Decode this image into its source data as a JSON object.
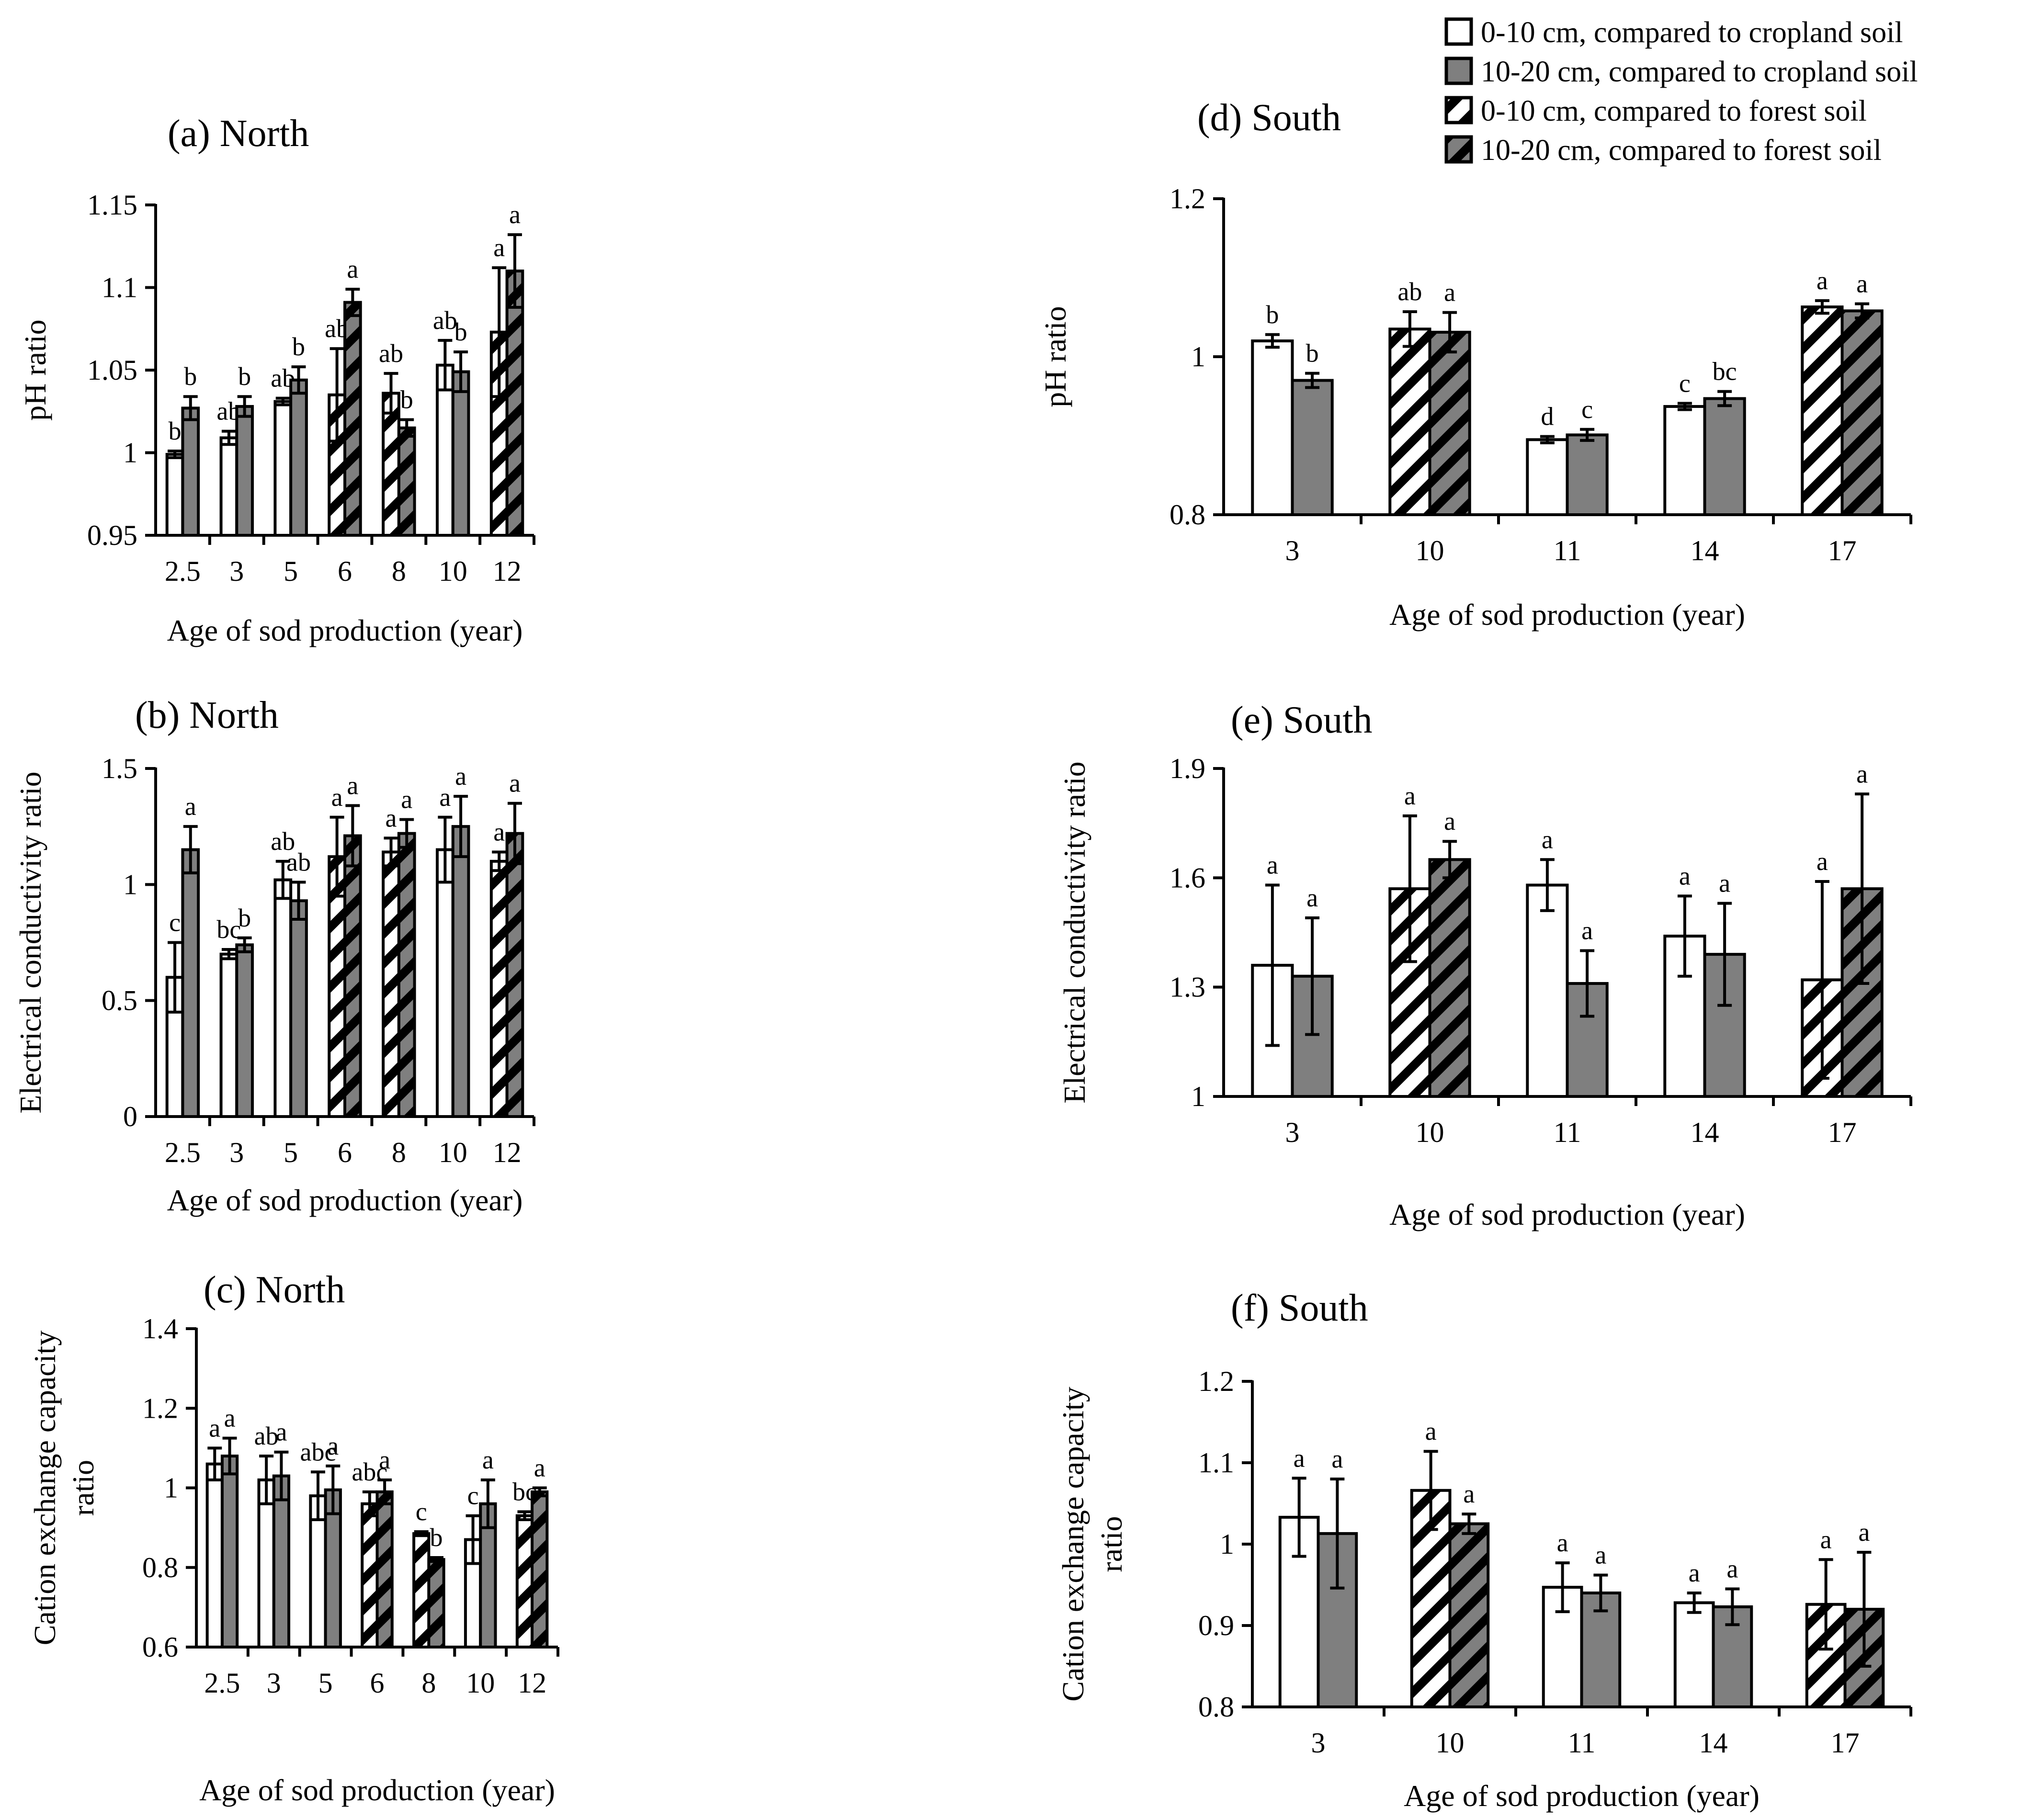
{
  "legend": {
    "items": [
      {
        "label": "0-10 cm, compared to cropland soil",
        "style": "white"
      },
      {
        "label": "10-20 cm, compared to cropland soil",
        "style": "gray"
      },
      {
        "label": "0-10 cm, compared to forest soil",
        "style": "white-hatch"
      },
      {
        "label": "10-20 cm, compared to forest soil",
        "style": "gray-hatch"
      }
    ]
  },
  "colors": {
    "gray": "#7f7f7f",
    "white": "#ffffff",
    "line": "#000000"
  },
  "chart_data": [
    {
      "id": "a",
      "type": "bar",
      "title": "(a) North",
      "xlabel": "Age of sod production (year)",
      "ylabel": [
        "pH ratio"
      ],
      "ylim": [
        0.95,
        1.15
      ],
      "yticks": [
        0.95,
        1.0,
        1.05,
        1.1,
        1.15
      ],
      "ytick_labels": [
        "0.95",
        "1",
        "1.05",
        "1.1",
        "1.15"
      ],
      "categories": [
        "2.5",
        "3",
        "5",
        "6",
        "8",
        "10",
        "12"
      ],
      "reference": [
        "cropland",
        "cropland",
        "cropland",
        "forest",
        "forest",
        "cropland",
        "forest"
      ],
      "series": [
        {
          "name": "0-10 cm",
          "values": [
            0.999,
            1.009,
            1.031,
            1.035,
            1.036,
            1.053,
            1.073
          ],
          "errors": [
            0.002,
            0.004,
            0.002,
            0.028,
            0.012,
            0.015,
            0.039
          ],
          "letters": [
            "b",
            "ab",
            "ab",
            "ab",
            "ab",
            "ab",
            "a"
          ]
        },
        {
          "name": "10-20 cm",
          "values": [
            1.027,
            1.028,
            1.044,
            1.091,
            1.015,
            1.049,
            1.11
          ],
          "errors": [
            0.007,
            0.006,
            0.008,
            0.008,
            0.005,
            0.012,
            0.022
          ],
          "letters": [
            "b",
            "b",
            "b",
            "a",
            "b",
            "b",
            "a"
          ]
        }
      ]
    },
    {
      "id": "b",
      "type": "bar",
      "title": "(b) North",
      "xlabel": "Age of sod production (year)",
      "ylabel": [
        "Electrical conductivity ratio"
      ],
      "ylim": [
        0,
        1.5
      ],
      "yticks": [
        0,
        0.5,
        1.0,
        1.5
      ],
      "ytick_labels": [
        "0",
        "0.5",
        "1",
        "1.5"
      ],
      "categories": [
        "2.5",
        "3",
        "5",
        "6",
        "8",
        "10",
        "12"
      ],
      "reference": [
        "cropland",
        "cropland",
        "cropland",
        "forest",
        "forest",
        "cropland",
        "forest"
      ],
      "series": [
        {
          "name": "0-10 cm",
          "values": [
            0.6,
            0.7,
            1.02,
            1.12,
            1.14,
            1.15,
            1.1
          ],
          "errors": [
            0.15,
            0.02,
            0.08,
            0.17,
            0.06,
            0.14,
            0.04
          ],
          "letters": [
            "c",
            "bc",
            "ab",
            "a",
            "a",
            "a",
            "a"
          ]
        },
        {
          "name": "10-20 cm",
          "values": [
            1.15,
            0.74,
            0.93,
            1.21,
            1.22,
            1.25,
            1.22
          ],
          "errors": [
            0.1,
            0.03,
            0.08,
            0.13,
            0.06,
            0.13,
            0.13
          ],
          "letters": [
            "a",
            "b",
            "ab",
            "a",
            "a",
            "a",
            "a"
          ]
        }
      ]
    },
    {
      "id": "c",
      "type": "bar",
      "title": "(c) North",
      "xlabel": "Age of sod production (year)",
      "ylabel": [
        "Cation exchange capacity",
        "ratio"
      ],
      "ylim": [
        0.6,
        1.4
      ],
      "yticks": [
        0.6,
        0.8,
        1.0,
        1.2,
        1.4
      ],
      "ytick_labels": [
        "0.6",
        "0.8",
        "1",
        "1.2",
        "1.4"
      ],
      "categories": [
        "2.5",
        "3",
        "5",
        "6",
        "8",
        "10",
        "12"
      ],
      "reference": [
        "cropland",
        "cropland",
        "cropland",
        "forest",
        "forest",
        "cropland",
        "forest"
      ],
      "series": [
        {
          "name": "0-10 cm",
          "values": [
            1.06,
            1.02,
            0.98,
            0.96,
            0.885,
            0.87,
            0.93
          ],
          "errors": [
            0.04,
            0.06,
            0.06,
            0.03,
            0.005,
            0.06,
            0.01
          ],
          "letters": [
            "a",
            "ab",
            "abc",
            "abc",
            "c",
            "c",
            "bc"
          ]
        },
        {
          "name": "10-20 cm",
          "values": [
            1.08,
            1.03,
            0.995,
            0.99,
            0.82,
            0.96,
            0.99
          ],
          "errors": [
            0.045,
            0.06,
            0.06,
            0.03,
            0.005,
            0.06,
            0.01
          ],
          "letters": [
            "a",
            "a",
            "a",
            "a",
            "b",
            "a",
            "a"
          ]
        }
      ]
    },
    {
      "id": "d",
      "type": "bar",
      "title": "(d) South",
      "xlabel": "Age of sod production (year)",
      "ylabel": [
        "pH ratio"
      ],
      "ylim": [
        0.8,
        1.2
      ],
      "yticks": [
        0.8,
        1.0,
        1.2
      ],
      "ytick_labels": [
        "0.8",
        "1",
        "1.2"
      ],
      "categories": [
        "3",
        "10",
        "11",
        "14",
        "17"
      ],
      "reference": [
        "cropland",
        "forest",
        "cropland",
        "cropland",
        "forest"
      ],
      "series": [
        {
          "name": "0-10 cm",
          "values": [
            1.02,
            1.035,
            0.895,
            0.937,
            1.063
          ],
          "errors": [
            0.008,
            0.022,
            0.004,
            0.004,
            0.008
          ],
          "letters": [
            "b",
            "ab",
            "d",
            "c",
            "a"
          ]
        },
        {
          "name": "10-20 cm",
          "values": [
            0.97,
            1.031,
            0.901,
            0.947,
            1.058
          ],
          "errors": [
            0.009,
            0.025,
            0.007,
            0.009,
            0.009
          ],
          "letters": [
            "b",
            "a",
            "c",
            "bc",
            "a"
          ]
        }
      ]
    },
    {
      "id": "e",
      "type": "bar",
      "title": "(e) South",
      "xlabel": "Age of sod production (year)",
      "ylabel": [
        "Electrical conductivity ratio"
      ],
      "ylim": [
        1.0,
        1.9
      ],
      "yticks": [
        1.0,
        1.3,
        1.6,
        1.9
      ],
      "ytick_labels": [
        "1",
        "1.3",
        "1.6",
        "1.9"
      ],
      "categories": [
        "3",
        "10",
        "11",
        "14",
        "17"
      ],
      "reference": [
        "cropland",
        "forest",
        "cropland",
        "cropland",
        "forest"
      ],
      "series": [
        {
          "name": "0-10 cm",
          "values": [
            1.36,
            1.57,
            1.58,
            1.44,
            1.32
          ],
          "errors": [
            0.22,
            0.2,
            0.07,
            0.11,
            0.27
          ],
          "letters": [
            "a",
            "a",
            "a",
            "a",
            "a"
          ]
        },
        {
          "name": "10-20 cm",
          "values": [
            1.33,
            1.65,
            1.31,
            1.39,
            1.57
          ],
          "errors": [
            0.16,
            0.05,
            0.09,
            0.14,
            0.26
          ],
          "letters": [
            "a",
            "a",
            "a",
            "a",
            "a"
          ]
        }
      ]
    },
    {
      "id": "f",
      "type": "bar",
      "title": "(f) South",
      "xlabel": "Age of sod production (year)",
      "ylabel": [
        "Cation exchange capacity",
        "ratio"
      ],
      "ylim": [
        0.8,
        1.2
      ],
      "yticks": [
        0.8,
        0.9,
        1.0,
        1.1,
        1.2
      ],
      "ytick_labels": [
        "0.8",
        "0.9",
        "1",
        "1.1",
        "1.2"
      ],
      "categories": [
        "3",
        "10",
        "11",
        "14",
        "17"
      ],
      "reference": [
        "cropland",
        "forest",
        "cropland",
        "cropland",
        "forest"
      ],
      "series": [
        {
          "name": "0-10 cm",
          "values": [
            1.033,
            1.066,
            0.947,
            0.928,
            0.926
          ],
          "errors": [
            0.048,
            0.048,
            0.03,
            0.012,
            0.055
          ],
          "letters": [
            "a",
            "a",
            "a",
            "a",
            "a"
          ]
        },
        {
          "name": "10-20 cm",
          "values": [
            1.013,
            1.025,
            0.94,
            0.923,
            0.92
          ],
          "errors": [
            0.067,
            0.012,
            0.022,
            0.022,
            0.07
          ],
          "letters": [
            "a",
            "a",
            "a",
            "a",
            "a"
          ]
        }
      ]
    }
  ]
}
